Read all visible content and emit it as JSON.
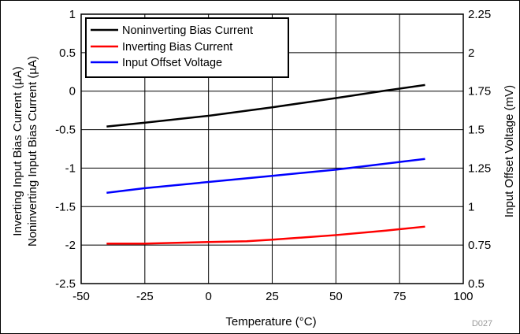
{
  "chart_data": {
    "type": "line",
    "title": "",
    "xlabel": "Temperature (°C)",
    "ylabel_left_lines": [
      "Inverting Input Bias Current (µA)",
      "Noninverting Input Bias Current (µA)"
    ],
    "ylabel_right": "Input Offset Voltage (mV)",
    "xlim": [
      -50,
      100
    ],
    "ylim_left": [
      -2.5,
      1
    ],
    "ylim_right": [
      0.5,
      2.25
    ],
    "x_ticks": [
      "-50",
      "-25",
      "0",
      "25",
      "50",
      "75",
      "100"
    ],
    "y_ticks_left": [
      "-2.5",
      "-2",
      "-1.5",
      "-1",
      "-0.5",
      "0",
      "0.5",
      "1"
    ],
    "y_ticks_right": [
      "0.5",
      "0.75",
      "1",
      "1.25",
      "1.5",
      "1.75",
      "2",
      "2.25"
    ],
    "grid": true,
    "legend_position": "top-left",
    "figure_code": "D027",
    "series": [
      {
        "name": "Noninverting Bias Current",
        "axis": "left",
        "color": "#000000",
        "x": [
          -40,
          -25,
          0,
          25,
          50,
          70,
          85
        ],
        "y": [
          -0.46,
          -0.41,
          -0.32,
          -0.21,
          -0.09,
          0.01,
          0.08
        ]
      },
      {
        "name": "Inverting Bias Current",
        "axis": "left",
        "color": "#ff0000",
        "x": [
          -40,
          -25,
          0,
          15,
          25,
          50,
          70,
          85
        ],
        "y": [
          -1.98,
          -1.98,
          -1.96,
          -1.95,
          -1.93,
          -1.87,
          -1.81,
          -1.76
        ]
      },
      {
        "name": "Input Offset Voltage",
        "axis": "right",
        "color": "#0000ff",
        "x": [
          -40,
          -25,
          0,
          25,
          50,
          75,
          85
        ],
        "y": [
          1.09,
          1.12,
          1.16,
          1.2,
          1.24,
          1.29,
          1.31
        ]
      }
    ]
  }
}
